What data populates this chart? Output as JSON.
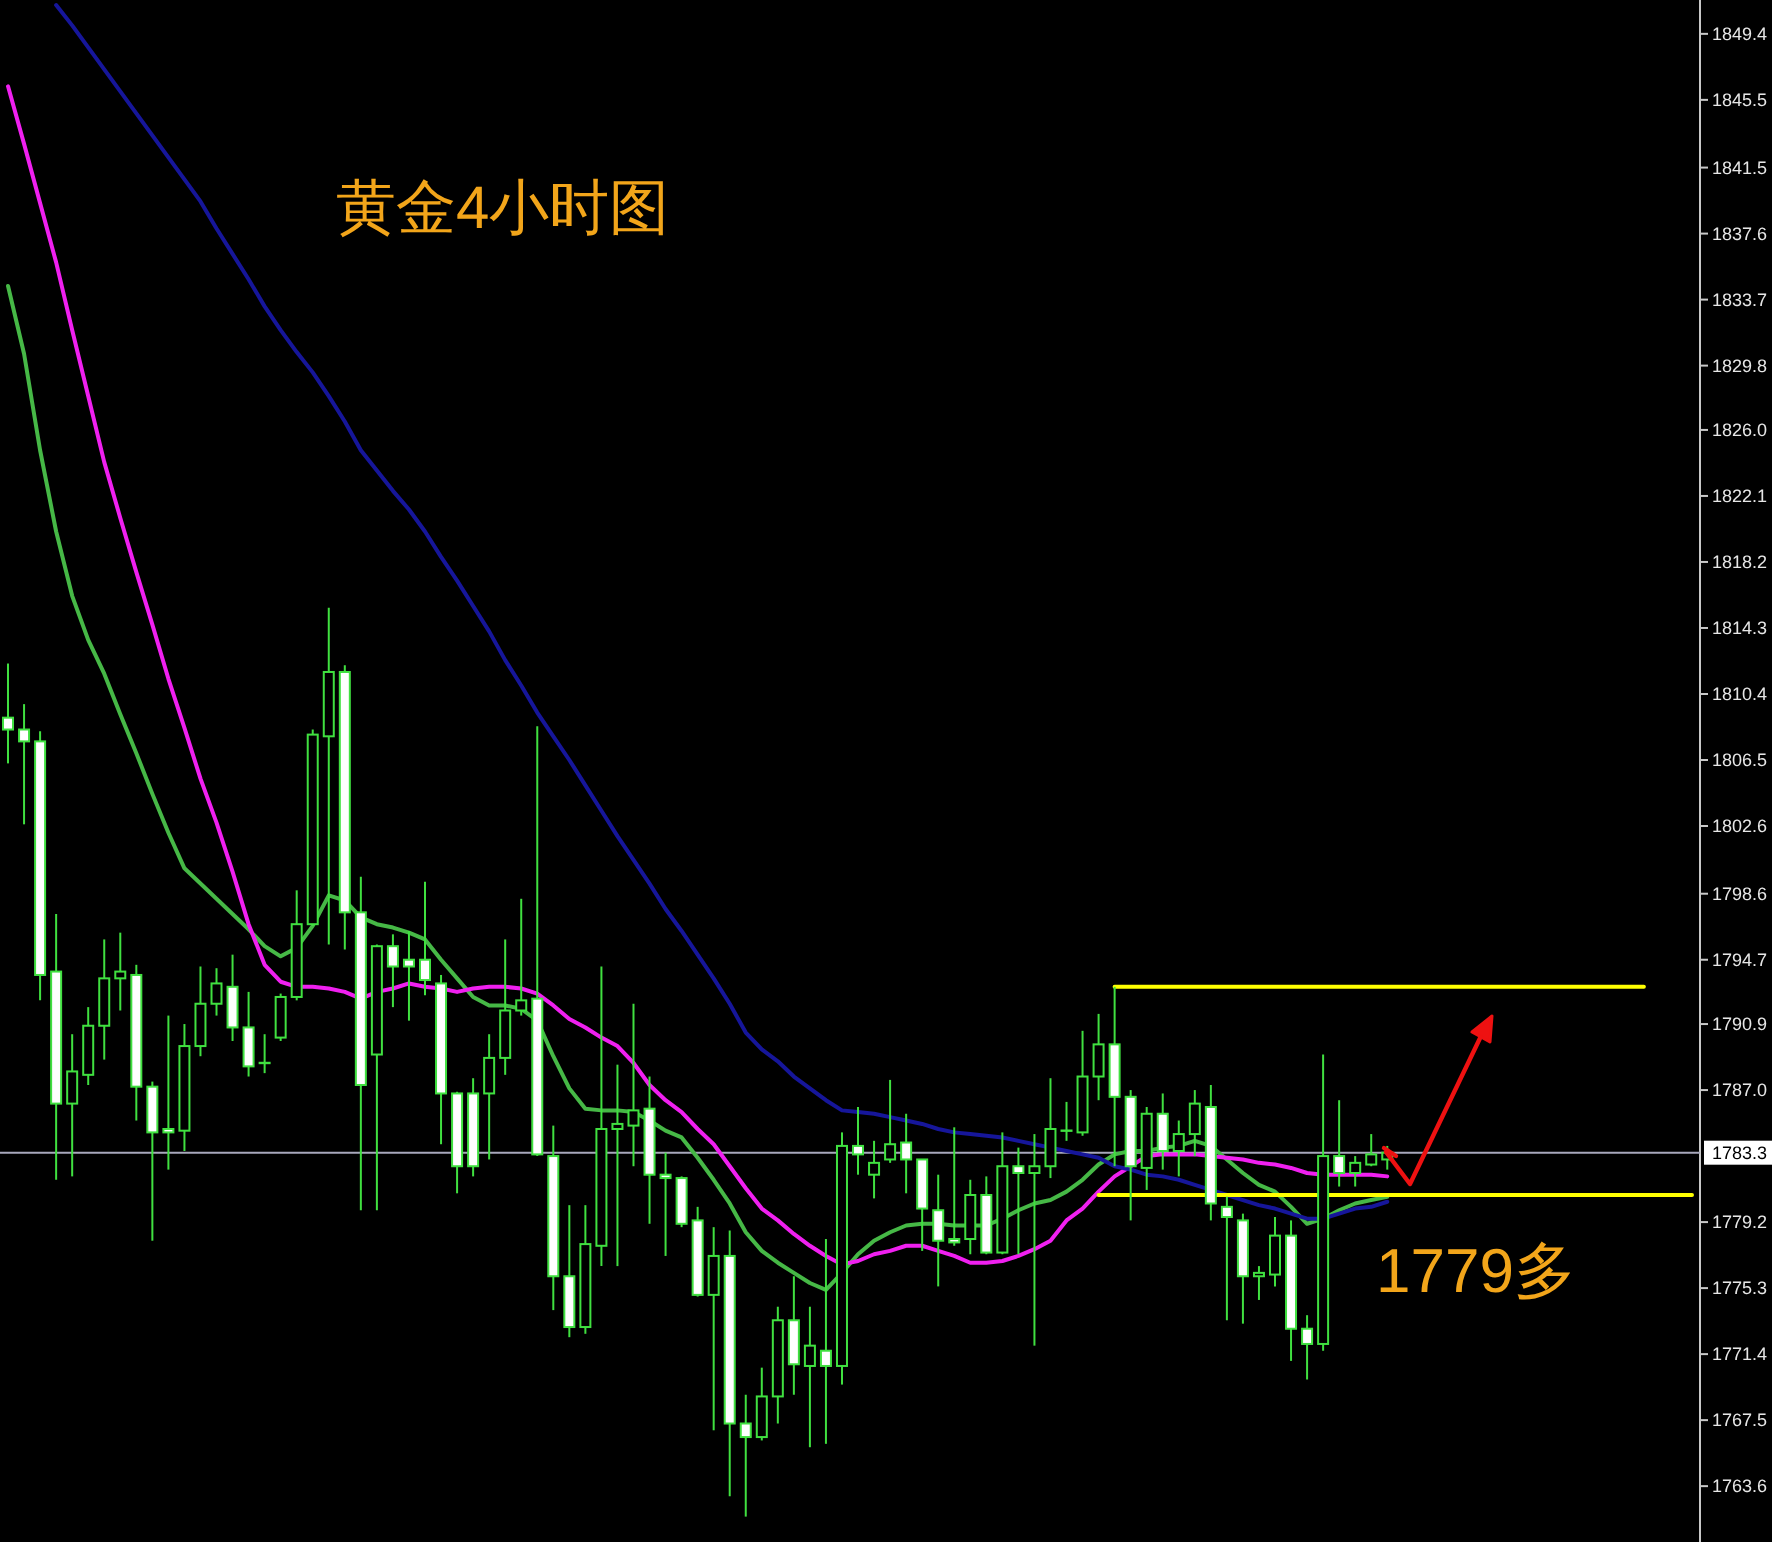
{
  "chart_data": {
    "type": "candlestick",
    "title": "黄金4小时图",
    "annotations": [
      "1779多"
    ],
    "categories": [
      null,
      null,
      null,
      null,
      null,
      null,
      null,
      null,
      null,
      null,
      null,
      null,
      null,
      null,
      null,
      null,
      null,
      null,
      null,
      null,
      null,
      null,
      null,
      null,
      null,
      null,
      null,
      null,
      null,
      null,
      null,
      null,
      null,
      null,
      null,
      null,
      null,
      null,
      null,
      null,
      null,
      null,
      null,
      null,
      null,
      null,
      null,
      null,
      null,
      null,
      null,
      null,
      null,
      null,
      null,
      null,
      null,
      null,
      null,
      null,
      null,
      null,
      null,
      null,
      null,
      null,
      null,
      null,
      null,
      null,
      null,
      null,
      null,
      null,
      null,
      null,
      null,
      null,
      null,
      null,
      null,
      null,
      null,
      null,
      null,
      null,
      null,
      null,
      null,
      null,
      null,
      null,
      null,
      null,
      null,
      null,
      null,
      null,
      null,
      null,
      null,
      null,
      null,
      null,
      null,
      null
    ],
    "color": "#40e040",
    "ohlc": [
      [
        1809.0,
        1812.2,
        1806.3,
        1808.3
      ],
      [
        1808.3,
        1809.8,
        1802.7,
        1807.6
      ],
      [
        1807.6,
        1808.2,
        1792.3,
        1793.8
      ],
      [
        1794.0,
        1797.4,
        1781.7,
        1786.2
      ],
      [
        1786.2,
        1790.3,
        1781.9,
        1788.1
      ],
      [
        1787.9,
        1791.9,
        1787.3,
        1790.8
      ],
      [
        1790.8,
        1795.9,
        1788.8,
        1793.6
      ],
      [
        1793.6,
        1796.3,
        1791.7,
        1794.0
      ],
      [
        1793.8,
        1794.4,
        1785.2,
        1787.2
      ],
      [
        1787.2,
        1787.5,
        1778.1,
        1784.5
      ],
      [
        1784.7,
        1791.4,
        1782.3,
        1784.5
      ],
      [
        1784.6,
        1790.9,
        1783.4,
        1789.6
      ],
      [
        1789.6,
        1794.3,
        1789.0,
        1792.1
      ],
      [
        1792.1,
        1794.2,
        1791.4,
        1793.3
      ],
      [
        1793.1,
        1795.0,
        1789.9,
        1790.7
      ],
      [
        1790.7,
        1792.8,
        1787.8,
        1788.4
      ],
      [
        1788.6,
        1790.3,
        1788.0,
        1788.6
      ],
      [
        1790.1,
        1792.7,
        1789.9,
        1792.5
      ],
      [
        1792.5,
        1798.8,
        1792.3,
        1796.8
      ],
      [
        1796.8,
        1808.3,
        1796.7,
        1808.0
      ],
      [
        1807.9,
        1815.5,
        1795.6,
        1811.7
      ],
      [
        1811.7,
        1812.1,
        1795.3,
        1797.5
      ],
      [
        1797.5,
        1799.6,
        1779.9,
        1787.3
      ],
      [
        1789.1,
        1795.6,
        1779.9,
        1795.5
      ],
      [
        1795.5,
        1796.2,
        1791.9,
        1794.3
      ],
      [
        1794.7,
        1796.4,
        1791.1,
        1794.3
      ],
      [
        1794.7,
        1799.3,
        1792.6,
        1793.5
      ],
      [
        1793.3,
        1793.8,
        1783.8,
        1786.8
      ],
      [
        1786.8,
        1786.9,
        1780.9,
        1782.5
      ],
      [
        1786.8,
        1787.7,
        1781.9,
        1782.5
      ],
      [
        1786.8,
        1790.3,
        1782.9,
        1788.9
      ],
      [
        1788.9,
        1795.9,
        1787.9,
        1791.7
      ],
      [
        1791.7,
        1798.3,
        1791.4,
        1792.3
      ],
      [
        1792.4,
        1808.5,
        1783.1,
        1783.2
      ],
      [
        1783.1,
        1784.9,
        1774.0,
        1776.0
      ],
      [
        1776.0,
        1780.2,
        1772.4,
        1773.0
      ],
      [
        1773.0,
        1780.2,
        1772.6,
        1777.9
      ],
      [
        1777.8,
        1794.3,
        1776.6,
        1784.7
      ],
      [
        1784.7,
        1788.5,
        1776.6,
        1785.0
      ],
      [
        1784.9,
        1792.1,
        1782.5,
        1785.8
      ],
      [
        1785.9,
        1787.8,
        1779.1,
        1782.0
      ],
      [
        1782.0,
        1783.3,
        1777.2,
        1781.8
      ],
      [
        1781.8,
        1781.9,
        1778.9,
        1779.1
      ],
      [
        1779.3,
        1780.1,
        1774.8,
        1774.9
      ],
      [
        1774.9,
        1778.9,
        1766.9,
        1777.2
      ],
      [
        1777.2,
        1778.7,
        1763.0,
        1767.3
      ],
      [
        1767.3,
        1769.0,
        1761.8,
        1766.5
      ],
      [
        1766.5,
        1770.6,
        1766.3,
        1768.9
      ],
      [
        1768.9,
        1774.2,
        1767.3,
        1773.4
      ],
      [
        1773.4,
        1776.0,
        1769.0,
        1770.8
      ],
      [
        1770.7,
        1774.2,
        1765.9,
        1771.9
      ],
      [
        1771.6,
        1778.2,
        1766.1,
        1770.7
      ],
      [
        1770.7,
        1784.5,
        1769.6,
        1783.7
      ],
      [
        1783.7,
        1786.0,
        1782.0,
        1783.2
      ],
      [
        1782.0,
        1784.0,
        1780.6,
        1782.7
      ],
      [
        1782.9,
        1787.6,
        1782.7,
        1783.8
      ],
      [
        1783.9,
        1785.6,
        1780.9,
        1782.9
      ],
      [
        1782.9,
        1782.9,
        1777.5,
        1780.0
      ],
      [
        1779.9,
        1782.0,
        1775.4,
        1778.1
      ],
      [
        1778.2,
        1784.8,
        1777.8,
        1778.0
      ],
      [
        1778.2,
        1781.7,
        1777.3,
        1780.8
      ],
      [
        1780.8,
        1781.9,
        1777.3,
        1777.4
      ],
      [
        1777.4,
        1784.5,
        1777.3,
        1782.5
      ],
      [
        1782.5,
        1783.6,
        1777.3,
        1782.1
      ],
      [
        1782.1,
        1784.4,
        1771.9,
        1782.5
      ],
      [
        1782.5,
        1787.7,
        1781.8,
        1784.7
      ],
      [
        1784.6,
        1786.3,
        1784.0,
        1784.6
      ],
      [
        1784.5,
        1790.5,
        1784.3,
        1787.8
      ],
      [
        1787.8,
        1791.5,
        1786.4,
        1789.7
      ],
      [
        1789.7,
        1793.1,
        1782.5,
        1786.6
      ],
      [
        1786.6,
        1787.0,
        1779.3,
        1782.5
      ],
      [
        1782.4,
        1786.0,
        1781.1,
        1785.6
      ],
      [
        1785.6,
        1786.8,
        1782.3,
        1783.4
      ],
      [
        1783.4,
        1785.2,
        1781.9,
        1784.4
      ],
      [
        1784.4,
        1787.0,
        1783.1,
        1786.2
      ],
      [
        1786.0,
        1787.3,
        1779.3,
        1780.3
      ],
      [
        1780.1,
        1780.7,
        1773.4,
        1779.5
      ],
      [
        1779.3,
        1779.7,
        1773.2,
        1776.0
      ],
      [
        1776.0,
        1776.6,
        1774.6,
        1776.2
      ],
      [
        1776.1,
        1779.5,
        1775.4,
        1778.4
      ],
      [
        1778.4,
        1779.3,
        1771.0,
        1772.9
      ],
      [
        1772.9,
        1773.7,
        1769.9,
        1772.0
      ],
      [
        1772.0,
        1789.1,
        1771.6,
        1783.1
      ],
      [
        1783.1,
        1786.4,
        1781.3,
        1782.1
      ],
      [
        1782.1,
        1783.1,
        1781.3,
        1782.7
      ],
      [
        1782.6,
        1784.4,
        1782.5,
        1783.2
      ],
      [
        1782.9,
        1783.7,
        1782.3,
        1783.3
      ],
      null,
      null,
      null,
      null,
      null,
      null,
      null,
      null,
      null,
      null,
      null,
      null,
      null,
      null,
      null,
      null,
      null,
      null,
      null
    ],
    "series": [
      {
        "type": "line",
        "color": "#46b846",
        "values": [
          1834.5,
          1830.5,
          1824.8,
          1820.0,
          1816.2,
          1813.6,
          1811.6,
          1809.2,
          1806.9,
          1804.5,
          1802.2,
          1800.1,
          1799.2,
          1798.3,
          1797.4,
          1796.5,
          1795.5,
          1794.9,
          1795.4,
          1796.7,
          1798.5,
          1798.2,
          1797.2,
          1796.8,
          1796.6,
          1796.3,
          1795.9,
          1794.7,
          1793.6,
          1792.5,
          1792.0,
          1792.0,
          1791.8,
          1791.1,
          1789.0,
          1787.1,
          1785.9,
          1785.8,
          1785.8,
          1785.7,
          1785.2,
          1784.6,
          1784.2,
          1783.0,
          1781.7,
          1780.3,
          1778.6,
          1777.5,
          1776.8,
          1776.2,
          1775.6,
          1775.2,
          1776.2,
          1777.3,
          1778.1,
          1778.6,
          1779.0,
          1779.1,
          1779.1,
          1779.0,
          1779.0,
          1779.0,
          1779.4,
          1779.9,
          1780.3,
          1780.5,
          1781.0,
          1781.7,
          1782.6,
          1783.2,
          1783.4,
          1783.4,
          1783.6,
          1783.7,
          1784.0,
          1783.7,
          1782.9,
          1782.1,
          1781.4,
          1781.0,
          1780.1,
          1779.1,
          1779.4,
          1779.9,
          1780.3,
          1780.5,
          1780.7,
          null,
          null,
          null,
          null,
          null,
          null,
          null,
          null,
          null,
          null,
          null,
          null,
          null,
          null,
          null,
          null,
          null,
          null,
          null
        ]
      },
      {
        "type": "line",
        "color": "#f020f0",
        "values": [
          1846.3,
          1842.9,
          1839.4,
          1835.9,
          1831.9,
          1828.0,
          1824.1,
          1820.8,
          1817.6,
          1814.5,
          1811.3,
          1808.4,
          1805.4,
          1802.8,
          1799.9,
          1796.8,
          1794.4,
          1793.4,
          1793.1,
          1793.1,
          1793.0,
          1792.8,
          1792.4,
          1792.8,
          1793.0,
          1793.3,
          1793.1,
          1793.0,
          1792.8,
          1793.0,
          1793.1,
          1793.1,
          1793.0,
          1792.7,
          1792.0,
          1791.2,
          1790.7,
          1790.1,
          1789.6,
          1788.6,
          1787.3,
          1786.4,
          1785.7,
          1784.7,
          1783.8,
          1782.5,
          1781.2,
          1780.0,
          1779.3,
          1778.5,
          1777.8,
          1777.2,
          1776.7,
          1776.9,
          1777.3,
          1777.5,
          1777.8,
          1777.8,
          1777.5,
          1777.2,
          1776.8,
          1776.8,
          1776.9,
          1777.2,
          1777.6,
          1778.1,
          1779.3,
          1780.0,
          1781.0,
          1781.9,
          1782.5,
          1783.1,
          1783.2,
          1783.2,
          1783.2,
          1783.1,
          1783.0,
          1782.9,
          1782.7,
          1782.6,
          1782.4,
          1782.1,
          1782.0,
          1782.0,
          1782.0,
          1782.0,
          1781.9,
          null,
          null,
          null,
          null,
          null,
          null,
          null,
          null,
          null,
          null,
          null,
          null,
          null,
          null,
          null,
          null,
          null,
          null,
          null
        ]
      },
      {
        "type": "line",
        "color": "#16169a",
        "values": [
          null,
          null,
          null,
          1851.1,
          1849.9,
          1848.6,
          1847.3,
          1846.0,
          1844.7,
          1843.4,
          1842.1,
          1840.8,
          1839.5,
          1837.9,
          1836.4,
          1834.9,
          1833.3,
          1831.9,
          1830.6,
          1829.4,
          1828.0,
          1826.5,
          1824.8,
          1823.6,
          1822.4,
          1821.3,
          1820.0,
          1818.5,
          1817.1,
          1815.6,
          1814.1,
          1812.4,
          1810.9,
          1809.3,
          1807.9,
          1806.5,
          1805.0,
          1803.5,
          1802.0,
          1800.6,
          1799.2,
          1797.7,
          1796.4,
          1795.0,
          1793.6,
          1792.1,
          1790.4,
          1789.4,
          1788.7,
          1787.8,
          1787.1,
          1786.4,
          1785.8,
          1785.7,
          1785.6,
          1785.4,
          1785.2,
          1785.0,
          1784.7,
          1784.5,
          1784.4,
          1784.3,
          1784.2,
          1784.0,
          1783.8,
          1783.6,
          1783.4,
          1783.2,
          1783.0,
          1782.5,
          1782.3,
          1782.0,
          1781.9,
          1781.7,
          1781.4,
          1781.1,
          1780.8,
          1780.5,
          1780.2,
          1780.0,
          1779.7,
          1779.4,
          1779.4,
          1779.7,
          1780.0,
          1780.1,
          1780.4,
          null,
          null,
          null,
          null,
          null,
          null,
          null,
          null,
          null,
          null,
          null,
          null,
          null,
          null,
          null,
          null,
          null,
          null,
          null
        ]
      },
      {
        "type": "line",
        "color": "#ffff00",
        "values": [
          null,
          null,
          null,
          null,
          null,
          null,
          null,
          null,
          null,
          null,
          null,
          null,
          null,
          null,
          null,
          null,
          null,
          null,
          null,
          null,
          null,
          null,
          null,
          null,
          null,
          null,
          null,
          null,
          null,
          null,
          null,
          null,
          null,
          null,
          null,
          null,
          null,
          null,
          null,
          null,
          null,
          null,
          null,
          null,
          null,
          null,
          null,
          null,
          null,
          null,
          null,
          null,
          null,
          null,
          null,
          null,
          null,
          null,
          null,
          null,
          null,
          null,
          null,
          null,
          null,
          null,
          null,
          null,
          null,
          1793.1,
          1793.1,
          1793.1,
          1793.1,
          1793.1,
          1793.1,
          1793.1,
          1793.1,
          1793.1,
          1793.1,
          1793.1,
          1793.1,
          1793.1,
          1793.1,
          1793.1,
          1793.1,
          1793.1,
          1793.1,
          1793.1,
          1793.1,
          1793.1,
          1793.1,
          1793.1,
          1793.1,
          1793.1,
          1793.1,
          1793.1,
          1793.1,
          1793.1,
          1793.1,
          1793.1,
          1793.1,
          1793.1,
          1793.1,
          null,
          null,
          null
        ]
      },
      {
        "type": "line",
        "color": "#ffff00",
        "values": [
          null,
          null,
          null,
          null,
          null,
          null,
          null,
          null,
          null,
          null,
          null,
          null,
          null,
          null,
          null,
          null,
          null,
          null,
          null,
          null,
          null,
          null,
          null,
          null,
          null,
          null,
          null,
          null,
          null,
          null,
          null,
          null,
          null,
          null,
          null,
          null,
          null,
          null,
          null,
          null,
          null,
          null,
          null,
          null,
          null,
          null,
          null,
          null,
          null,
          null,
          null,
          null,
          null,
          null,
          null,
          null,
          null,
          null,
          null,
          null,
          null,
          null,
          null,
          null,
          null,
          null,
          null,
          null,
          1780.8,
          1780.8,
          1780.8,
          1780.8,
          1780.8,
          1780.8,
          1780.8,
          1780.8,
          1780.8,
          1780.8,
          1780.8,
          1780.8,
          1780.8,
          1780.8,
          1780.8,
          1780.8,
          1780.8,
          1780.8,
          1780.8,
          1780.8,
          1780.8,
          1780.8,
          1780.8,
          1780.8,
          1780.8,
          1780.8,
          1780.8,
          1780.8,
          1780.8,
          1780.8,
          1780.8,
          1780.8,
          1780.8,
          1780.8,
          1780.8,
          1780.8,
          1780.8,
          1780.8
        ]
      }
    ],
    "ylim": [
      1760.3,
      1851.4
    ],
    "yticks": [
      1849.4,
      1845.5,
      1841.5,
      1837.6,
      1833.7,
      1829.8,
      {
        "value": 1826.0,
        "label": "1826.0"
      },
      1822.1,
      1818.2,
      1814.3,
      1810.4,
      1806.5,
      1802.6,
      1798.6,
      1794.7,
      1790.9,
      {
        "value": 1787.0,
        "label": "1787.0"
      },
      1779.2,
      1775.3,
      1771.4,
      1767.5,
      1763.6
    ],
    "tick_labels": "y",
    "ref_lines": [
      {
        "axis": "y",
        "value": 1783.3,
        "label": "1783.3",
        "color": "#a8a8bc"
      }
    ]
  }
}
